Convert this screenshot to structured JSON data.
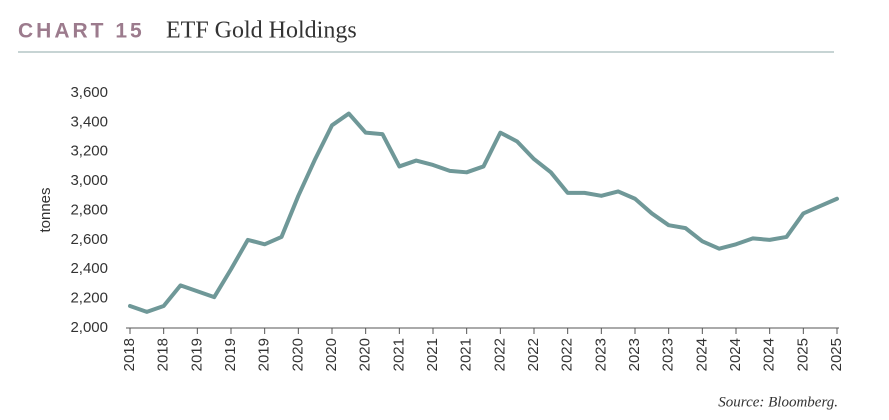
{
  "chart_data": {
    "type": "line",
    "title_label": "CHART 15",
    "title": "ETF Gold Holdings",
    "ylabel": "tonnes",
    "source": "Source: Bloomberg.",
    "categories": [
      "2018",
      null,
      "2018",
      null,
      "2019",
      null,
      "2019",
      null,
      "2019",
      null,
      "2020",
      null,
      "2020",
      null,
      "2020",
      null,
      "2021",
      null,
      "2021",
      null,
      "2021",
      null,
      "2022",
      null,
      "2022",
      null,
      "2022",
      null,
      "2023",
      null,
      "2023",
      null,
      "2023",
      null,
      "2024",
      null,
      "2024",
      null,
      "2024",
      null,
      "2025",
      null,
      "2025"
    ],
    "series": [
      {
        "name": "ETF Gold Holdings",
        "color": "#6f9898",
        "values": [
          2150,
          2110,
          2150,
          2290,
          2250,
          2210,
          2400,
          2600,
          2570,
          2620,
          2900,
          3150,
          3380,
          3460,
          3330,
          3320,
          3100,
          3140,
          3110,
          3070,
          3060,
          3100,
          3330,
          3270,
          3150,
          3060,
          2920,
          2920,
          2900,
          2930,
          2880,
          2780,
          2700,
          2680,
          2590,
          2540,
          2570,
          2610,
          2600,
          2620,
          2780,
          2830,
          2880
        ]
      }
    ],
    "ylim": [
      2000,
      3600
    ],
    "yticks": [
      {
        "value": 2000,
        "label": "2,000"
      },
      {
        "value": 2200,
        "label": "2,200"
      },
      {
        "value": 2400,
        "label": "2,400"
      },
      {
        "value": 2600,
        "label": "2,600"
      },
      {
        "value": 2800,
        "label": "2,800"
      },
      {
        "value": 3000,
        "label": "3,000"
      },
      {
        "value": 3200,
        "label": "3,200"
      },
      {
        "value": 3400,
        "label": "3,400"
      },
      {
        "value": 3600,
        "label": "3,600"
      }
    ],
    "grid": false
  }
}
